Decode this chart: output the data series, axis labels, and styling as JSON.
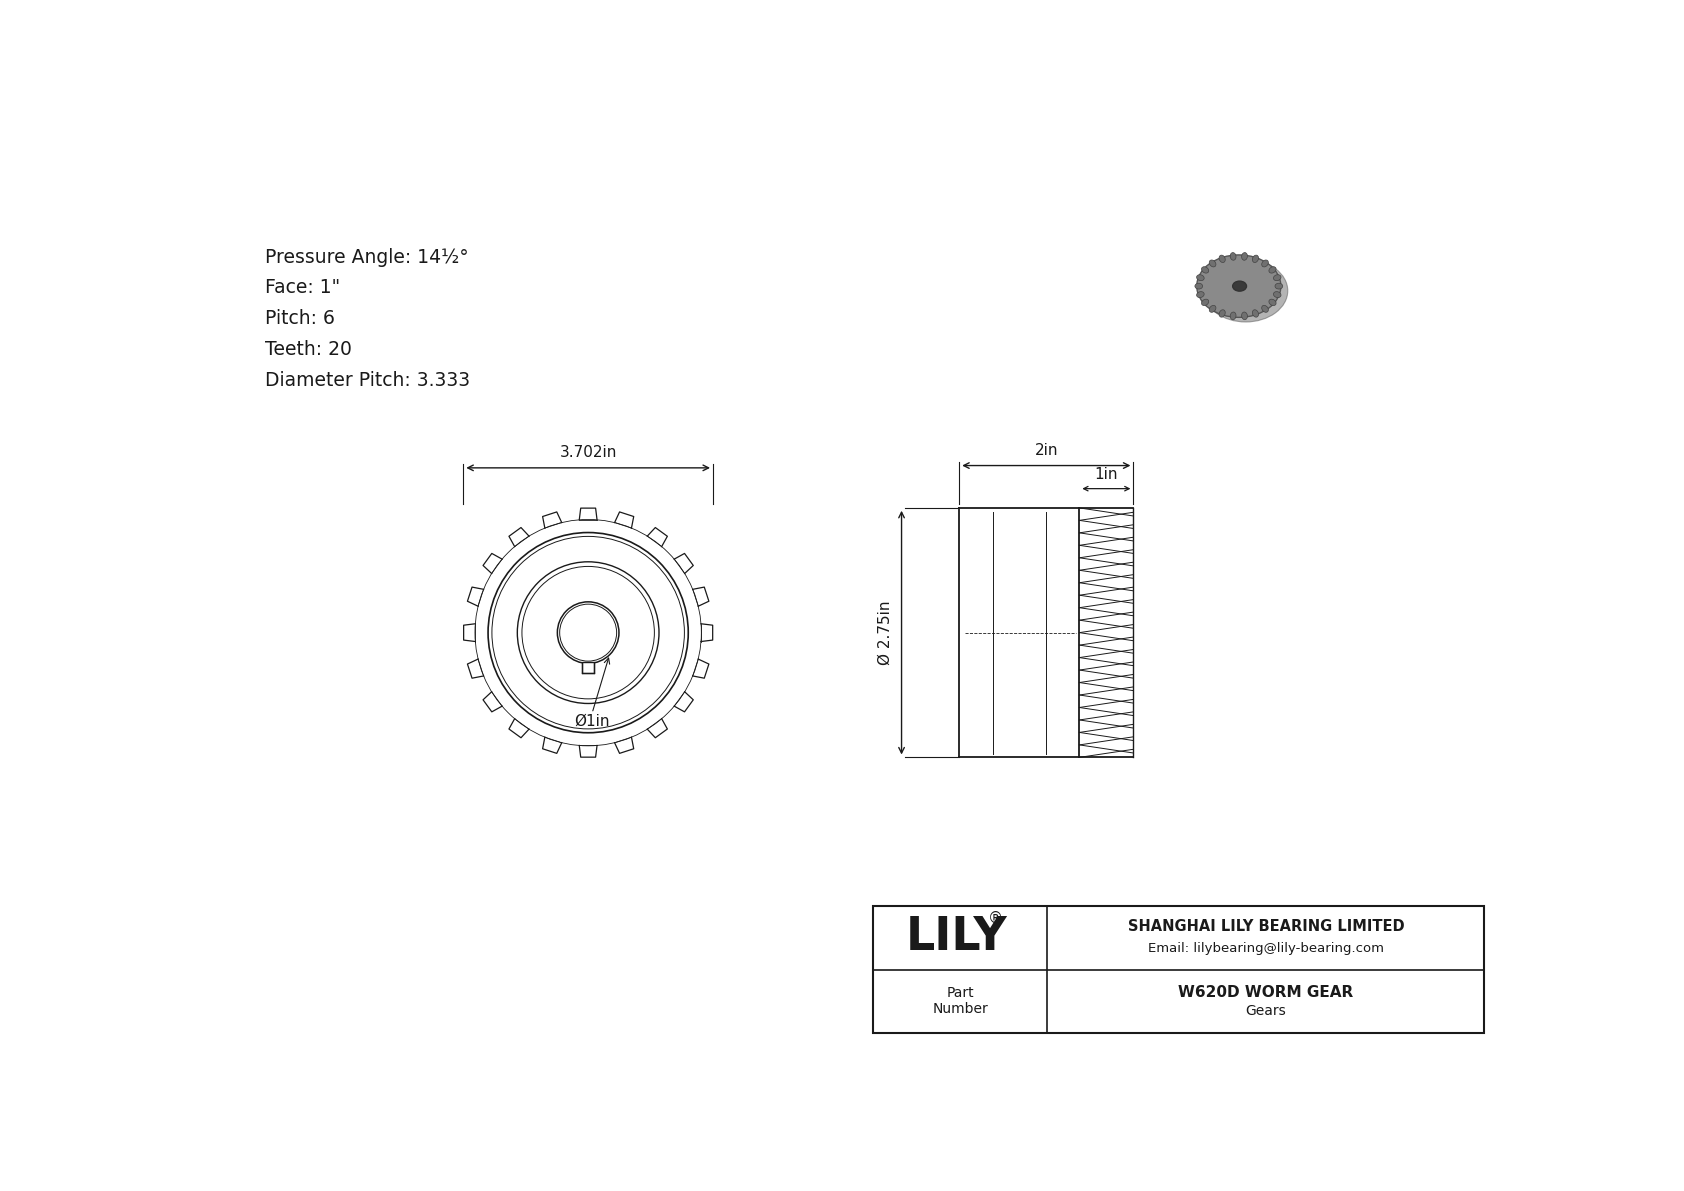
{
  "bg_color": "#ffffff",
  "line_color": "#1a1a1a",
  "dim_color": "#1a1a1a",
  "specs": [
    "Pressure Angle: 14½°",
    "Face: 1\"",
    "Pitch: 6",
    "Teeth: 20",
    "Diameter Pitch: 3.333"
  ],
  "title_block": {
    "company": "SHANGHAI LILY BEARING LIMITED",
    "email": "Email: lilybearing@lily-bearing.com",
    "part_label": "Part\nNumber",
    "part_name": "W620D WORM GEAR",
    "category": "Gears",
    "lily_text": "LILY"
  },
  "front_dim_label": "3.702in",
  "side_dim_2in": "2in",
  "side_dim_1in": "1in",
  "side_dim_dia": "Ø 2.75in",
  "front_hole_dia": "Ø1in"
}
